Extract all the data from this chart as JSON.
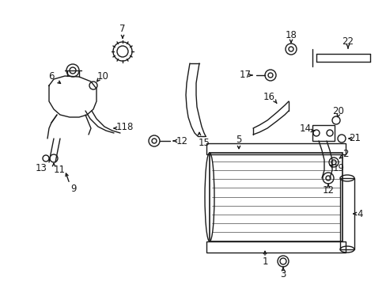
{
  "background_color": "#ffffff",
  "figsize": [
    4.89,
    3.6
  ],
  "dpi": 100,
  "line_color": "#1a1a1a",
  "label_fontsize": 8.5,
  "lw": 1.0
}
